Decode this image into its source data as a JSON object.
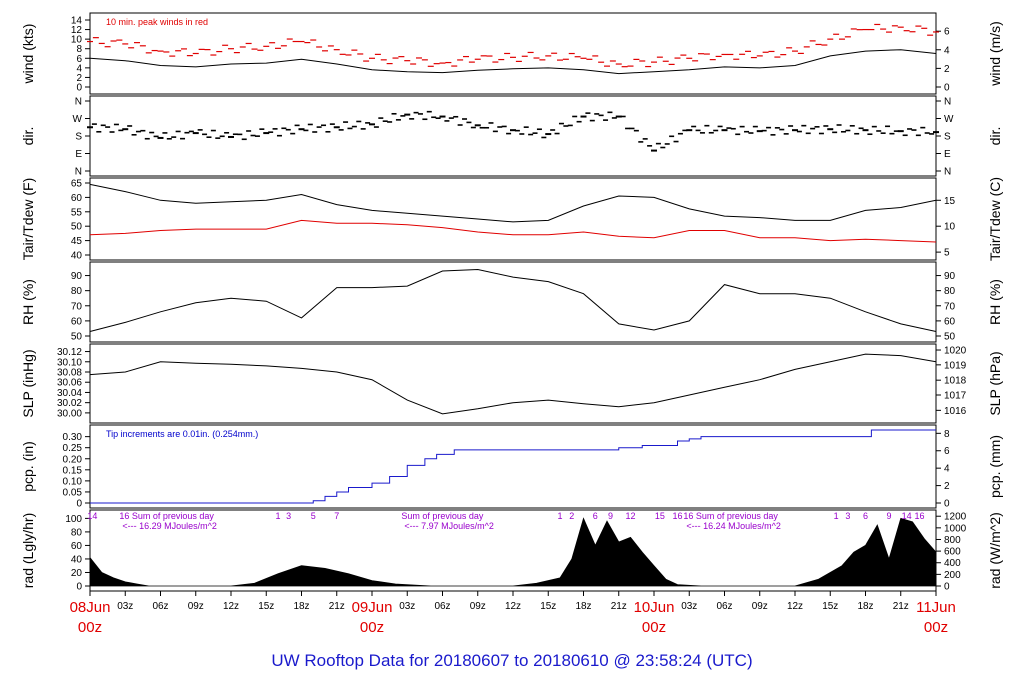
{
  "title": "UW Rooftop Data for 20180607  to  20180610 @ 23:58:24  (UTC)",
  "colors": {
    "red": "#e00000",
    "blue": "#1a1acc",
    "purple": "#9900cc",
    "black": "#000000"
  },
  "chart_data": {
    "type": "line",
    "x_unit": "hours since 08Jun 00z",
    "x_range": [
      0,
      72
    ],
    "x_ticks": [
      {
        "h": 0,
        "label": ""
      },
      {
        "h": 3,
        "label": "03z"
      },
      {
        "h": 6,
        "label": "06z"
      },
      {
        "h": 9,
        "label": "09z"
      },
      {
        "h": 12,
        "label": "12z"
      },
      {
        "h": 15,
        "label": "15z"
      },
      {
        "h": 18,
        "label": "18z"
      },
      {
        "h": 21,
        "label": "21z"
      },
      {
        "h": 24,
        "label": ""
      },
      {
        "h": 27,
        "label": "03z"
      },
      {
        "h": 30,
        "label": "06z"
      },
      {
        "h": 33,
        "label": "09z"
      },
      {
        "h": 36,
        "label": "12z"
      },
      {
        "h": 39,
        "label": "15z"
      },
      {
        "h": 42,
        "label": "18z"
      },
      {
        "h": 45,
        "label": "21z"
      },
      {
        "h": 48,
        "label": ""
      },
      {
        "h": 51,
        "label": "03z"
      },
      {
        "h": 54,
        "label": "06z"
      },
      {
        "h": 57,
        "label": "09z"
      },
      {
        "h": 60,
        "label": "12z"
      },
      {
        "h": 63,
        "label": "15z"
      },
      {
        "h": 66,
        "label": "18z"
      },
      {
        "h": 69,
        "label": "21z"
      },
      {
        "h": 72,
        "label": ""
      }
    ],
    "day_labels": [
      {
        "h": 0,
        "date": "08Jun",
        "time": "00z"
      },
      {
        "h": 24,
        "date": "09Jun",
        "time": "00z"
      },
      {
        "h": 48,
        "date": "10Jun",
        "time": "00z"
      },
      {
        "h": 72,
        "date": "11Jun",
        "time": "00z"
      }
    ],
    "panels": [
      {
        "id": "wind",
        "ylabel_left": "wind (kts)",
        "ylabel_right": "wind (m/s)",
        "ylim": [
          0,
          14
        ],
        "left_ticks": [
          "0",
          "2",
          "4",
          "6",
          "8",
          "10",
          "12",
          "14"
        ],
        "right_ticks": [
          {
            "v": 0,
            "label": "0"
          },
          {
            "v": 3.89,
            "label": "2"
          },
          {
            "v": 7.78,
            "label": "4"
          },
          {
            "v": 11.66,
            "label": "6"
          }
        ],
        "note": "10 min. peak winds in red",
        "series": [
          {
            "name": "wind speed",
            "color": "#000000",
            "x": [
              0,
              3,
              6,
              9,
              12,
              15,
              18,
              21,
              24,
              27,
              30,
              33,
              36,
              39,
              42,
              45,
              48,
              51,
              54,
              57,
              60,
              63,
              66,
              69,
              72
            ],
            "y": [
              6,
              5.5,
              4.5,
              4.2,
              4.8,
              5,
              5.8,
              4.8,
              3.6,
              3.2,
              3,
              3.5,
              3.8,
              4,
              3.6,
              2.8,
              3.2,
              3.6,
              4.2,
              4,
              4.5,
              6.5,
              7.5,
              7.8,
              7
            ]
          },
          {
            "name": "10 min peak",
            "color": "#e00000",
            "style": "dash",
            "x": [
              0,
              3,
              6,
              9,
              12,
              15,
              18,
              21,
              24,
              27,
              30,
              33,
              36,
              39,
              42,
              45,
              48,
              51,
              54,
              57,
              60,
              63,
              66,
              69,
              72
            ],
            "y": [
              9.5,
              9,
              7.5,
              7,
              8,
              8.5,
              9.5,
              7.8,
              6,
              5.5,
              5,
              5.8,
              6.2,
              6.5,
              6,
              4.8,
              5.2,
              6,
              6.8,
              6.5,
              7.5,
              10,
              12,
              12.5,
              11.5
            ]
          }
        ]
      },
      {
        "id": "dir",
        "ylabel_left": "dir.",
        "ylabel_right": "dir.",
        "ylim": [
          0,
          360
        ],
        "left_ticks": [
          {
            "v": 0,
            "label": "N"
          },
          {
            "v": 90,
            "label": "E"
          },
          {
            "v": 180,
            "label": "S"
          },
          {
            "v": 270,
            "label": "W"
          },
          {
            "v": 360,
            "label": "N"
          }
        ],
        "right_ticks": [
          {
            "v": 0,
            "label": "N"
          },
          {
            "v": 90,
            "label": "E"
          },
          {
            "v": 180,
            "label": "S"
          },
          {
            "v": 270,
            "label": "W"
          },
          {
            "v": 360,
            "label": "N"
          }
        ],
        "series": [
          {
            "name": "wind direction",
            "color": "#000000",
            "style": "points",
            "x": [
              0,
              3,
              6,
              9,
              12,
              15,
              18,
              21,
              24,
              27,
              30,
              33,
              36,
              39,
              42,
              45,
              48,
              51,
              54,
              57,
              60,
              63,
              66,
              69,
              72
            ],
            "y": [
              225,
              215,
              170,
              195,
              175,
              195,
              215,
              225,
              240,
              290,
              280,
              235,
              210,
              190,
              280,
              280,
              105,
              210,
              210,
              205,
              210,
              215,
              210,
              205,
              200
            ]
          }
        ]
      },
      {
        "id": "temp",
        "ylabel_left": "Tair/Tdew (F)",
        "ylabel_right": "Tair/Tdew (C)",
        "ylim": [
          40,
          65
        ],
        "left_ticks": [
          "40",
          "45",
          "50",
          "55",
          "60",
          "65"
        ],
        "right_ticks": [
          {
            "v": 41,
            "label": "5"
          },
          {
            "v": 50,
            "label": "10"
          },
          {
            "v": 59,
            "label": "15"
          }
        ],
        "series": [
          {
            "name": "Tair",
            "color": "#000000",
            "x": [
              0,
              3,
              6,
              9,
              12,
              15,
              18,
              21,
              24,
              27,
              30,
              33,
              36,
              39,
              42,
              45,
              48,
              51,
              54,
              57,
              60,
              63,
              66,
              69,
              72
            ],
            "y": [
              64.5,
              62,
              59,
              58,
              58.5,
              59,
              61,
              57.5,
              55.5,
              54.5,
              53.5,
              52.5,
              51.5,
              52,
              57,
              60.5,
              60,
              56,
              53.5,
              53,
              52,
              52,
              55.5,
              56.5,
              59
            ]
          },
          {
            "name": "Tdew",
            "color": "#e00000",
            "x": [
              0,
              3,
              6,
              9,
              12,
              15,
              18,
              21,
              24,
              27,
              30,
              33,
              36,
              39,
              42,
              45,
              48,
              51,
              54,
              57,
              60,
              63,
              66,
              69,
              72
            ],
            "y": [
              47,
              47.5,
              48.5,
              49,
              49,
              49,
              52,
              51,
              51,
              50.5,
              49.5,
              48,
              47,
              47,
              48,
              46.5,
              46,
              48.5,
              48.5,
              46,
              46,
              45,
              45.5,
              45,
              44.5
            ]
          }
        ]
      },
      {
        "id": "rh",
        "ylabel_left": "RH (%)",
        "ylabel_right": "RH (%)",
        "ylim": [
          50,
          95
        ],
        "left_ticks": [
          "50",
          "60",
          "70",
          "80",
          "90"
        ],
        "right_ticks": [
          {
            "v": 50,
            "label": "50"
          },
          {
            "v": 60,
            "label": "60"
          },
          {
            "v": 70,
            "label": "70"
          },
          {
            "v": 80,
            "label": "80"
          },
          {
            "v": 90,
            "label": "90"
          }
        ],
        "series": [
          {
            "name": "RH",
            "color": "#000000",
            "x": [
              0,
              3,
              6,
              9,
              12,
              15,
              18,
              21,
              24,
              27,
              30,
              33,
              36,
              39,
              42,
              45,
              48,
              51,
              54,
              57,
              60,
              63,
              66,
              69,
              72
            ],
            "y": [
              53,
              59,
              66,
              72,
              75,
              73,
              62,
              82,
              82,
              83,
              93,
              94,
              89,
              86,
              78,
              58,
              54,
              60,
              84,
              78,
              78,
              75,
              66,
              58,
              53
            ]
          }
        ]
      },
      {
        "id": "slp",
        "ylabel_left": "SLP (inHg)",
        "ylabel_right": "SLP (hPa)",
        "ylim": [
          29.99,
          30.125
        ],
        "left_ticks": [
          "30.00",
          "30.02",
          "30.04",
          "30.06",
          "30.08",
          "30.10",
          "30.12"
        ],
        "right_ticks": [
          {
            "v": 30.005,
            "label": "1016"
          },
          {
            "v": 30.035,
            "label": "1017"
          },
          {
            "v": 30.064,
            "label": "1018"
          },
          {
            "v": 30.094,
            "label": "1019"
          },
          {
            "v": 30.123,
            "label": "1020"
          }
        ],
        "series": [
          {
            "name": "SLP",
            "color": "#000000",
            "x": [
              0,
              3,
              6,
              9,
              12,
              15,
              18,
              21,
              24,
              27,
              30,
              33,
              36,
              39,
              42,
              45,
              48,
              51,
              54,
              57,
              60,
              63,
              66,
              69,
              72
            ],
            "y": [
              30.075,
              30.08,
              30.1,
              30.097,
              30.095,
              30.092,
              30.087,
              30.08,
              30.065,
              30.025,
              29.998,
              30.008,
              30.02,
              30.025,
              30.018,
              30.012,
              30.02,
              30.035,
              30.05,
              30.065,
              30.085,
              30.1,
              30.115,
              30.112,
              30.1
            ]
          }
        ]
      },
      {
        "id": "pcp",
        "ylabel_left": "pcp. (in)",
        "ylabel_right": "pcp. (mm)",
        "ylim": [
          0,
          0.33
        ],
        "left_ticks": [
          "0",
          "0.05",
          "0.10",
          "0.15",
          "0.20",
          "0.25",
          "0.30"
        ],
        "right_ticks": [
          {
            "v": 0,
            "label": "0"
          },
          {
            "v": 0.0787,
            "label": "2"
          },
          {
            "v": 0.1575,
            "label": "4"
          },
          {
            "v": 0.2362,
            "label": "6"
          },
          {
            "v": 0.315,
            "label": "8"
          }
        ],
        "note": "Tip increments are 0.01in. (0.254mm.)",
        "series": [
          {
            "name": "accumulated precip",
            "color": "#1a1acc",
            "style": "step",
            "x": [
              0,
              18.5,
              19,
              20,
              21,
              22,
              24,
              25.5,
              27,
              28.5,
              29.5,
              31,
              36,
              42,
              45,
              47,
              48,
              50,
              51,
              52,
              54,
              57,
              60,
              63,
              66,
              66.5,
              69,
              72
            ],
            "y": [
              0,
              0,
              0.01,
              0.03,
              0.05,
              0.07,
              0.09,
              0.12,
              0.17,
              0.2,
              0.22,
              0.24,
              0.24,
              0.24,
              0.25,
              0.26,
              0.26,
              0.28,
              0.29,
              0.3,
              0.3,
              0.3,
              0.3,
              0.3,
              0.3,
              0.33,
              0.33,
              0.33
            ]
          }
        ]
      },
      {
        "id": "rad",
        "ylabel_left": "rad (Lgly/hr)",
        "ylabel_right": "rad (W/m^2)",
        "ylim": [
          0,
          105
        ],
        "left_ticks": [
          "0",
          "20",
          "40",
          "60",
          "80",
          "100"
        ],
        "right_ticks": [
          {
            "v": 0,
            "label": "0"
          },
          {
            "v": 17.2,
            "label": "200"
          },
          {
            "v": 34.4,
            "label": "400"
          },
          {
            "v": 51.6,
            "label": "600"
          },
          {
            "v": 68.8,
            "label": "800"
          },
          {
            "v": 86,
            "label": "1000"
          },
          {
            "v": 103.2,
            "label": "1200"
          }
        ],
        "daily_notes": [
          {
            "h": 2.5,
            "sum": "16 Sum of previous day",
            "value": "<--- 16.29 MJoules/m^2"
          },
          {
            "h": 26.5,
            "sum": "Sum of previous day",
            "value": "<--- 7.97 MJoules/m^2"
          },
          {
            "h": 50.5,
            "sum": "16  Sum of previous day",
            "value": "<--- 16.24 MJoules/m^2"
          }
        ],
        "hour_marks": [
          {
            "h": 0.2,
            "label": "14"
          },
          {
            "h": 16,
            "label": "1"
          },
          {
            "h": 16.9,
            "label": "3"
          },
          {
            "h": 19,
            "label": "5"
          },
          {
            "h": 21,
            "label": "7"
          },
          {
            "h": 40,
            "label": "1"
          },
          {
            "h": 41,
            "label": "2"
          },
          {
            "h": 43,
            "label": "6"
          },
          {
            "h": 44.3,
            "label": "9"
          },
          {
            "h": 46,
            "label": "12"
          },
          {
            "h": 48.5,
            "label": "15"
          },
          {
            "h": 50,
            "label": "16"
          },
          {
            "h": 63.5,
            "label": "1"
          },
          {
            "h": 64.5,
            "label": "3"
          },
          {
            "h": 66,
            "label": "6"
          },
          {
            "h": 68,
            "label": "9"
          },
          {
            "h": 69.5,
            "label": "14"
          },
          {
            "h": 70.6,
            "label": "16"
          }
        ],
        "series": [
          {
            "name": "solar radiation",
            "color": "#000000",
            "style": "area",
            "x": [
              0,
              1,
              2,
              3,
              4,
              5,
              12,
              14,
              16,
              18,
              20,
              22,
              24,
              26,
              29,
              34,
              36,
              38,
              40,
              41,
              42,
              43,
              44,
              45,
              46,
              47,
              48,
              49,
              50,
              52,
              60,
              62,
              64,
              65,
              66,
              67,
              68,
              69,
              70,
              71,
              72
            ],
            "y": [
              42,
              20,
              12,
              6,
              3,
              0,
              0,
              4,
              18,
              30,
              26,
              18,
              8,
              3,
              0,
              0,
              0,
              4,
              12,
              40,
              100,
              60,
              96,
              65,
              72,
              50,
              30,
              10,
              2,
              0,
              0,
              10,
              30,
              50,
              60,
              90,
              40,
              100,
              95,
              70,
              50
            ]
          }
        ]
      }
    ]
  }
}
